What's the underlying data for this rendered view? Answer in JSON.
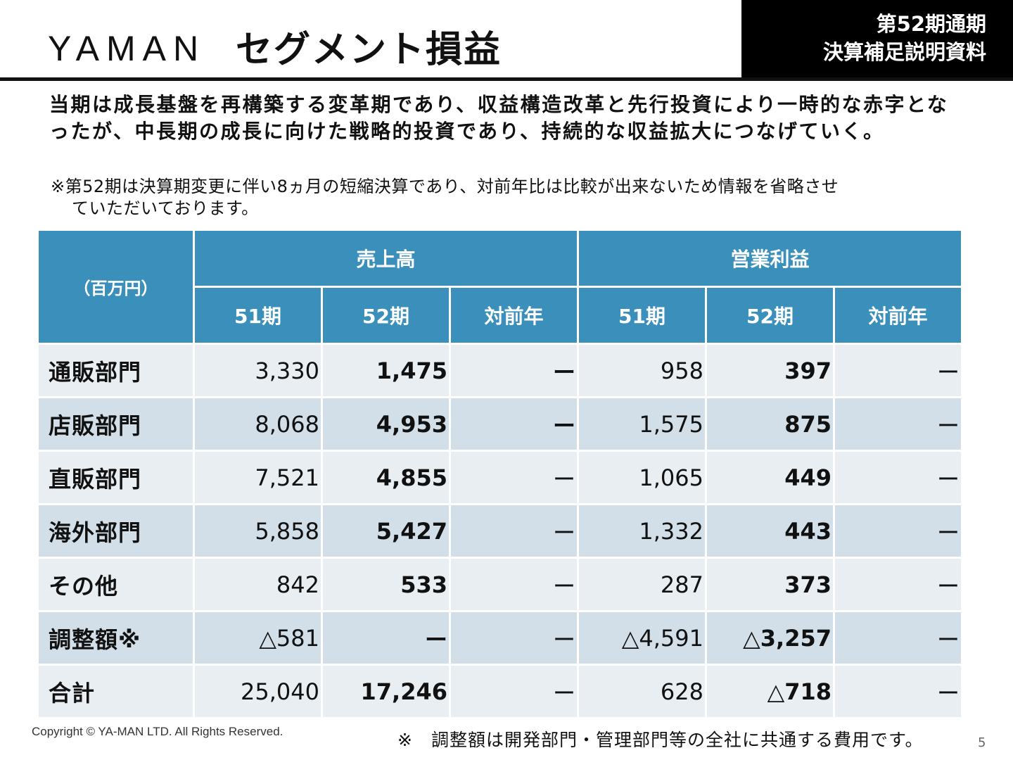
{
  "header": {
    "logo": "YAMAN",
    "title": "セグメント損益",
    "badge_line1": "第52期通期",
    "badge_line2": "決算補足説明資料"
  },
  "lead": "当期は成長基盤を再構築する変革期であり、収益構造改革と先行投資により一時的な赤字となったが、中長期の成長に向けた戦略的投資であり、持続的な収益拡大につなげていく。",
  "note_line1": "※第52期は決算期変更に伴い8ヵ月の短縮決算であり、対前年比は比較が出来ないため情報を省略させ",
  "note_line2": "ていただいております。",
  "table": {
    "unit": "（百万円）",
    "groups": [
      "売上高",
      "営業利益"
    ],
    "subheaders": [
      "51期",
      "52期",
      "対前年",
      "51期",
      "52期",
      "対前年"
    ],
    "rows": [
      {
        "label": "通販部門",
        "cells": [
          "3,330",
          "1,475",
          "ー",
          "958",
          "397",
          "ー"
        ]
      },
      {
        "label": "店販部門",
        "cells": [
          "8,068",
          "4,953",
          "ー",
          "1,575",
          "875",
          "ー"
        ]
      },
      {
        "label": "直販部門",
        "cells": [
          "7,521",
          "4,855",
          "ー",
          "1,065",
          "449",
          "ー"
        ]
      },
      {
        "label": "海外部門",
        "cells": [
          "5,858",
          "5,427",
          "ー",
          "1,332",
          "443",
          "ー"
        ]
      },
      {
        "label": "その他",
        "cells": [
          "842",
          "533",
          "ー",
          "287",
          "373",
          "ー"
        ]
      },
      {
        "label": "調整額※",
        "cells": [
          "△581",
          "ー",
          "ー",
          "△4,591",
          "△3,257",
          "ー"
        ]
      },
      {
        "label": "合計",
        "cells": [
          "25,040",
          "17,246",
          "ー",
          "628",
          "△718",
          "ー"
        ]
      }
    ]
  },
  "footer": {
    "copyright": "Copyright © YA-MAN LTD. All Rights Reserved.",
    "footnote": "※　調整額は開発部門・管理部門等の全社に共通する費用です。",
    "page": "5"
  },
  "colors": {
    "header_blue": "#3a8fbb",
    "row_light": "#e9eef2",
    "row_dark": "#d2dfe8"
  }
}
